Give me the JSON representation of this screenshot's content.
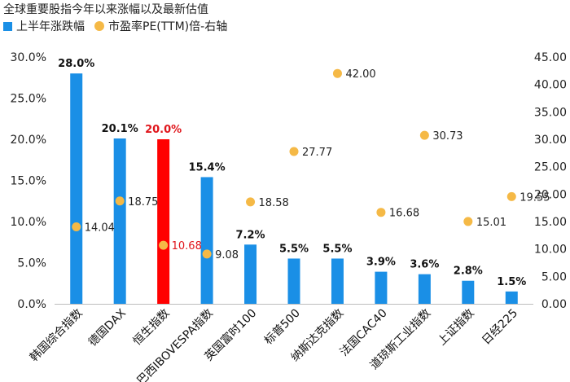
{
  "title": "全球重要股指今年以来涨幅以及最新估值",
  "legend": {
    "bar_label": "上半年涨跌幅",
    "dot_label": "市盈率PE(TTM)倍-右轴"
  },
  "colors": {
    "bar": "#1a8fe6",
    "highlight_bar": "#ff0000",
    "dot": "#f5b946",
    "highlight_label": "#e0161c"
  },
  "chart_data": {
    "type": "bar",
    "categories": [
      "韩国综合指数",
      "德国DAX",
      "恒生指数",
      "巴西IBOVESPA指数",
      "英国富时100",
      "标普500",
      "纳斯达克指数",
      "法国CAC40",
      "道琼斯工业指数",
      "上证指数",
      "日经225"
    ],
    "series": [
      {
        "name": "上半年涨跌幅",
        "type": "bar",
        "axis": "left",
        "values": [
          28.0,
          20.1,
          20.0,
          15.4,
          7.2,
          5.5,
          5.5,
          3.9,
          3.6,
          2.8,
          1.5
        ],
        "labels": [
          "28.0%",
          "20.1%",
          "20.0%",
          "15.4%",
          "7.2%",
          "5.5%",
          "5.5%",
          "3.9%",
          "3.6%",
          "2.8%",
          "1.5%"
        ],
        "highlight_index": 2
      },
      {
        "name": "市盈率PE(TTM)倍-右轴",
        "type": "scatter",
        "axis": "right",
        "values": [
          14.04,
          18.75,
          10.68,
          9.08,
          18.58,
          27.77,
          42.0,
          16.68,
          30.73,
          15.01,
          19.55
        ],
        "labels": [
          "14.04",
          "18.75",
          "10.68",
          "9.08",
          "18.58",
          "27.77",
          "42.00",
          "16.68",
          "30.73",
          "15.01",
          "19.55"
        ]
      }
    ],
    "y_left": {
      "range": [
        0,
        30
      ],
      "ticks": [
        "0.0%",
        "5.0%",
        "10.0%",
        "15.0%",
        "20.0%",
        "25.0%",
        "30.0%"
      ]
    },
    "y_right": {
      "range": [
        0,
        45
      ],
      "ticks": [
        "0.00",
        "5.00",
        "10.00",
        "15.00",
        "20.00",
        "25.00",
        "30.00",
        "35.00",
        "40.00",
        "45.00"
      ]
    },
    "grid": false,
    "legend_position": "top-left"
  }
}
